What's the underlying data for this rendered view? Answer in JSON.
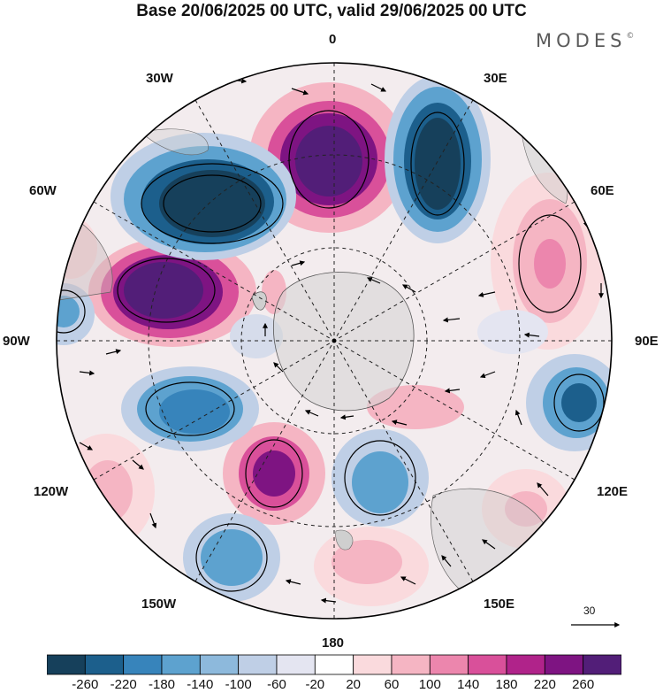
{
  "title": "Base 20/06/2025 00 UTC, valid 29/06/2025 00 UTC",
  "brand": "MODES",
  "brand_mark": "©",
  "longitude_labels": {
    "n0": "0",
    "e30": "30E",
    "e60": "60E",
    "e90": "90E",
    "e120": "120E",
    "e150": "150E",
    "s180": "180",
    "w150": "150W",
    "w120": "120W",
    "w90": "90W",
    "w60": "60W",
    "w30": "30W"
  },
  "reference_vector_label": "30",
  "colorbar": {
    "ticks": [
      "-260",
      "-220",
      "-180",
      "-140",
      "-100",
      "-60",
      "-20",
      "20",
      "60",
      "100",
      "140",
      "180",
      "220",
      "260"
    ],
    "colors": [
      "#16405b",
      "#1c5f8c",
      "#3784bb",
      "#5da2cf",
      "#8db9dc",
      "#bfcfe6",
      "#e4e5f1",
      "#ffffff",
      "#fadadd",
      "#f5b5c3",
      "#ec86ad",
      "#d9509a",
      "#b0238a",
      "#7e1482",
      "#521e78"
    ]
  },
  "colors": {
    "land": "#bdbdbd",
    "text": "#111111",
    "border": "#000000"
  }
}
